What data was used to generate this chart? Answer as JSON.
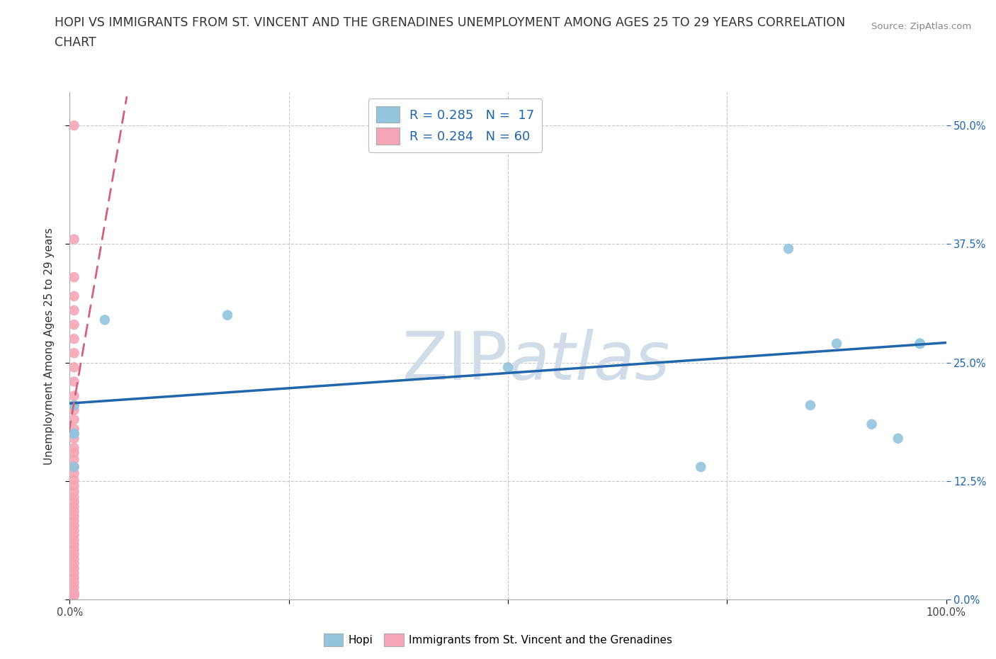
{
  "title_line1": "HOPI VS IMMIGRANTS FROM ST. VINCENT AND THE GRENADINES UNEMPLOYMENT AMONG AGES 25 TO 29 YEARS CORRELATION",
  "title_line2": "CHART",
  "source_text": "Source: ZipAtlas.com",
  "ylabel": "Unemployment Among Ages 25 to 29 years",
  "xlim": [
    0.0,
    1.0
  ],
  "ylim": [
    0.0,
    0.535
  ],
  "hopi_color": "#92c5de",
  "pink_color": "#f4a6b8",
  "trendline_blue_color": "#2166ac",
  "trendline_pink_color": "#d4607a",
  "background_color": "#ffffff",
  "grid_color": "#c8c8c8",
  "watermark_color": "#d0dce8",
  "hopi_points_x": [
    0.005,
    0.005,
    0.04,
    0.18,
    0.5,
    0.72,
    0.82,
    0.845,
    0.875,
    0.915,
    0.945,
    0.97,
    0.97,
    0.97,
    0.005,
    0.005,
    0.005
  ],
  "hopi_points_y": [
    0.205,
    0.175,
    0.295,
    0.3,
    0.245,
    0.14,
    0.37,
    0.205,
    0.27,
    0.185,
    0.17,
    0.27,
    0.27,
    0.27,
    0.205,
    0.175,
    0.14
  ],
  "pink_points_x": [
    0.005,
    0.005,
    0.005,
    0.005,
    0.005,
    0.005,
    0.005,
    0.005,
    0.005,
    0.005,
    0.005,
    0.005,
    0.005,
    0.005,
    0.005,
    0.005,
    0.005,
    0.005,
    0.005,
    0.005,
    0.005,
    0.005,
    0.005,
    0.005,
    0.005,
    0.005,
    0.005,
    0.005,
    0.005,
    0.005,
    0.005,
    0.005,
    0.005,
    0.005,
    0.005,
    0.005,
    0.005,
    0.005,
    0.005,
    0.005,
    0.005,
    0.005,
    0.005,
    0.005,
    0.005,
    0.005,
    0.005,
    0.005,
    0.005,
    0.005,
    0.005,
    0.005,
    0.005,
    0.005,
    0.005,
    0.005,
    0.005,
    0.005,
    0.005,
    0.005
  ],
  "pink_points_y": [
    0.5,
    0.38,
    0.34,
    0.32,
    0.305,
    0.29,
    0.275,
    0.26,
    0.245,
    0.23,
    0.215,
    0.2,
    0.19,
    0.18,
    0.17,
    0.16,
    0.155,
    0.148,
    0.14,
    0.133,
    0.126,
    0.12,
    0.114,
    0.108,
    0.103,
    0.098,
    0.093,
    0.088,
    0.083,
    0.078,
    0.073,
    0.068,
    0.063,
    0.058,
    0.053,
    0.048,
    0.043,
    0.038,
    0.033,
    0.028,
    0.023,
    0.018,
    0.013,
    0.008,
    0.005,
    0.005,
    0.005,
    0.005,
    0.005,
    0.005,
    0.005,
    0.005,
    0.005,
    0.005,
    0.005,
    0.005,
    0.005,
    0.005,
    0.005,
    0.005
  ],
  "hopi_trend_x": [
    0.0,
    1.0
  ],
  "hopi_trend_y": [
    0.207,
    0.271
  ],
  "pink_trend_x": [
    -0.005,
    0.065
  ],
  "pink_trend_y": [
    0.155,
    0.53
  ],
  "title_fontsize": 12.5,
  "axis_label_fontsize": 11,
  "tick_fontsize": 10.5,
  "legend_fontsize": 13
}
